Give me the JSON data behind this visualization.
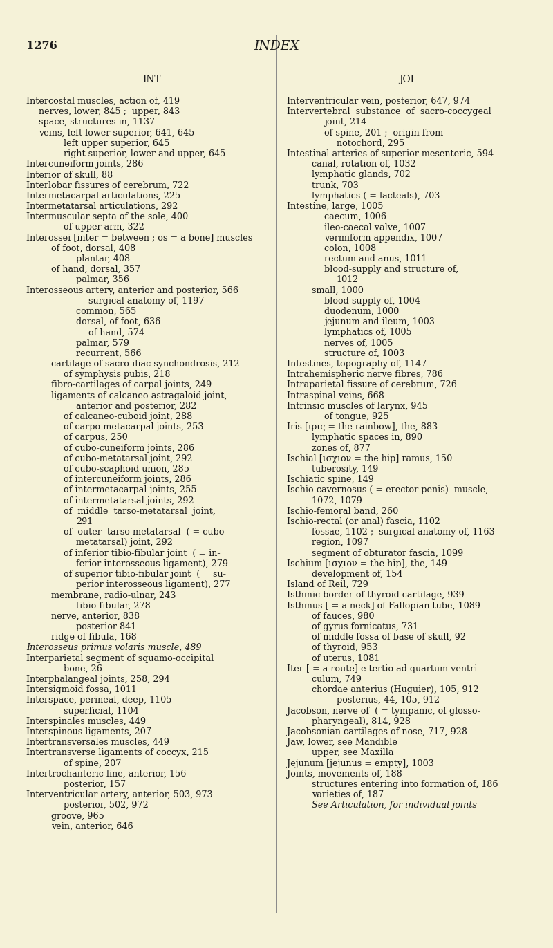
{
  "background_color": "#f5f2d8",
  "page_number": "1276",
  "page_title": "INDEX",
  "col1_header": "INT",
  "col2_header": "JOI",
  "left_col_lines": [
    [
      "Intercostal muscles, action of, 419",
      0,
      false
    ],
    [
      "nerves, lower, 845 ;  upper, 843",
      1,
      false
    ],
    [
      "space, structures in, 1137",
      1,
      false
    ],
    [
      "veins, left lower superior, 641, 645",
      1,
      false
    ],
    [
      "left upper superior, 645",
      3,
      false
    ],
    [
      "right superior, lower and upper, 645",
      3,
      false
    ],
    [
      "Intercuneiform joints, 286",
      0,
      false
    ],
    [
      "Interior of skull, 88",
      0,
      false
    ],
    [
      "Interlobar fissures of cerebrum, 722",
      0,
      false
    ],
    [
      "Intermetacarpal articulations, 225",
      0,
      false
    ],
    [
      "Intermetatarsal articulations, 292",
      0,
      false
    ],
    [
      "Intermuscular septa of the sole, 400",
      0,
      false
    ],
    [
      "of upper arm, 322",
      3,
      false
    ],
    [
      "Interossei [inter = between ; os = a bone] muscles",
      0,
      false
    ],
    [
      "of foot, dorsal, 408",
      2,
      false
    ],
    [
      "plantar, 408",
      4,
      false
    ],
    [
      "of hand, dorsal, 357",
      2,
      false
    ],
    [
      "palmar, 356",
      4,
      false
    ],
    [
      "Interosseous artery, anterior and posterior, 566",
      0,
      false
    ],
    [
      "surgical anatomy of, 1197",
      5,
      false
    ],
    [
      "common, 565",
      4,
      false
    ],
    [
      "dorsal, of foot, 636",
      4,
      false
    ],
    [
      "of hand, 574",
      5,
      false
    ],
    [
      "palmar, 579",
      4,
      false
    ],
    [
      "recurrent, 566",
      4,
      false
    ],
    [
      "cartilage of sacro-iliac synchondrosis, 212",
      2,
      false
    ],
    [
      "of symphysis pubis, 218",
      3,
      false
    ],
    [
      "fibro-cartilages of carpal joints, 249",
      2,
      false
    ],
    [
      "ligaments of calcaneo-astragaloid joint,",
      2,
      false
    ],
    [
      "anterior and posterior, 282",
      4,
      false
    ],
    [
      "of calcaneo-cuboid joint, 288",
      3,
      false
    ],
    [
      "of carpo-metacarpal joints, 253",
      3,
      false
    ],
    [
      "of carpus, 250",
      3,
      false
    ],
    [
      "of cubo-cuneiform joints, 286",
      3,
      false
    ],
    [
      "of cubo-metatarsal joint, 292",
      3,
      false
    ],
    [
      "of cubo-scaphoid union, 285",
      3,
      false
    ],
    [
      "of intercuneiform joints, 286",
      3,
      false
    ],
    [
      "of intermetacarpal joints, 255",
      3,
      false
    ],
    [
      "of intermetatarsal joints, 292",
      3,
      false
    ],
    [
      "of  middle  tarso-metatarsal  joint,",
      3,
      false
    ],
    [
      "291",
      4,
      false
    ],
    [
      "of  outer  tarso-metatarsal  ( = cubo-",
      3,
      false
    ],
    [
      "metatarsal) joint, 292",
      4,
      false
    ],
    [
      "of inferior tibio-fibular joint  ( = in-",
      3,
      false
    ],
    [
      "ferior interosseous ligament), 279",
      4,
      false
    ],
    [
      "of superior tibio-fibular joint  ( = su-",
      3,
      false
    ],
    [
      "perior interosseous ligament), 277",
      4,
      false
    ],
    [
      "membrane, radio-ulnar, 243",
      2,
      false
    ],
    [
      "tibio-fibular, 278",
      4,
      false
    ],
    [
      "nerve, anterior, 838",
      2,
      false
    ],
    [
      "posterior 841",
      4,
      false
    ],
    [
      "ridge of fibula, 168",
      2,
      false
    ],
    [
      "Interosseus primus volaris muscle, 489",
      0,
      true
    ],
    [
      "Interparietal segment of squamo-occipital",
      0,
      false
    ],
    [
      "bone, 26",
      3,
      false
    ],
    [
      "Interphalangeal joints, 258, 294",
      0,
      false
    ],
    [
      "Intersigmoid fossa, 1011",
      0,
      false
    ],
    [
      "Interspace, perineal, deep, 1105",
      0,
      false
    ],
    [
      "superficial, 1104",
      3,
      false
    ],
    [
      "Interspinales muscles, 449",
      0,
      false
    ],
    [
      "Interspinous ligaments, 207",
      0,
      false
    ],
    [
      "Intertransversales muscles, 449",
      0,
      false
    ],
    [
      "Intertransverse ligaments of coccyx, 215",
      0,
      false
    ],
    [
      "of spine, 207",
      3,
      false
    ],
    [
      "Intertrochanteric line, anterior, 156",
      0,
      false
    ],
    [
      "posterior, 157",
      3,
      false
    ],
    [
      "Interventricular artery, anterior, 503, 973",
      0,
      false
    ],
    [
      "posterior, 502, 972",
      3,
      false
    ],
    [
      "groove, 965",
      2,
      false
    ],
    [
      "vein, anterior, 646",
      2,
      false
    ]
  ],
  "right_col_lines": [
    [
      "Interventricular vein, posterior, 647, 974",
      0,
      false
    ],
    [
      "Intervertebral  substance  of  sacro-coccygeal",
      0,
      false
    ],
    [
      "joint, 214",
      3,
      false
    ],
    [
      "of spine, 201 ;  origin from",
      3,
      false
    ],
    [
      "notochord, 295",
      4,
      false
    ],
    [
      "Intestinal arteries of superior mesenteric, 594",
      0,
      false
    ],
    [
      "canal, rotation of, 1032",
      2,
      false
    ],
    [
      "lymphatic glands, 702",
      2,
      false
    ],
    [
      "trunk, 703",
      2,
      false
    ],
    [
      "lymphatics ( = lacteals), 703",
      2,
      false
    ],
    [
      "Intestine, large, 1005",
      0,
      false
    ],
    [
      "caecum, 1006",
      3,
      false
    ],
    [
      "ileo-caecal valve, 1007",
      3,
      false
    ],
    [
      "vermiform appendix, 1007",
      3,
      false
    ],
    [
      "colon, 1008",
      3,
      false
    ],
    [
      "rectum and anus, 1011",
      3,
      false
    ],
    [
      "blood-supply and structure of,",
      3,
      false
    ],
    [
      "1012",
      4,
      false
    ],
    [
      "small, 1000",
      2,
      false
    ],
    [
      "blood-supply of, 1004",
      3,
      false
    ],
    [
      "duodenum, 1000",
      3,
      false
    ],
    [
      "jejunum and ileum, 1003",
      3,
      false
    ],
    [
      "lymphatics of, 1005",
      3,
      false
    ],
    [
      "nerves of, 1005",
      3,
      false
    ],
    [
      "structure of, 1003",
      3,
      false
    ],
    [
      "Intestines, topography of, 1147",
      0,
      false
    ],
    [
      "Intrahemispheric nerve fibres, 786",
      0,
      false
    ],
    [
      "Intraparietal fissure of cerebrum, 726",
      0,
      false
    ],
    [
      "Intraspinal veins, 668",
      0,
      false
    ],
    [
      "Intrinsic muscles of larynx, 945",
      0,
      false
    ],
    [
      "of tongue, 925",
      3,
      false
    ],
    [
      "Iris [ιρις = the rainbow], the, 883",
      0,
      false
    ],
    [
      "lymphatic spaces in, 890",
      2,
      false
    ],
    [
      "zones of, 877",
      2,
      false
    ],
    [
      "Ischial [ισχιον = the hip] ramus, 150",
      0,
      false
    ],
    [
      "tuberosity, 149",
      2,
      false
    ],
    [
      "Ischiatic spine, 149",
      0,
      false
    ],
    [
      "Ischio-cavernosus ( = erector penis)  muscle,",
      0,
      false
    ],
    [
      "1072, 1079",
      2,
      false
    ],
    [
      "Ischio-femoral band, 260",
      0,
      false
    ],
    [
      "Ischio-rectal (or anal) fascia, 1102",
      0,
      false
    ],
    [
      "fossae, 1102 ;  surgical anatomy of, 1163",
      2,
      false
    ],
    [
      "region, 1097",
      2,
      false
    ],
    [
      "segment of obturator fascia, 1099",
      2,
      false
    ],
    [
      "Ischium [ισχιον = the hip], the, 149",
      0,
      false
    ],
    [
      "development of, 154",
      2,
      false
    ],
    [
      "Island of Reil, 729",
      0,
      false
    ],
    [
      "Isthmic border of thyroid cartilage, 939",
      0,
      false
    ],
    [
      "Isthmus [ = a neck] of Fallopian tube, 1089",
      0,
      false
    ],
    [
      "of fauces, 980",
      2,
      false
    ],
    [
      "of gyrus fornicatus, 731",
      2,
      false
    ],
    [
      "of middle fossa of base of skull, 92",
      2,
      false
    ],
    [
      "of thyroid, 953",
      2,
      false
    ],
    [
      "of uterus, 1081",
      2,
      false
    ],
    [
      "Iter [ = a route] e tertio ad quartum ventri-",
      0,
      false
    ],
    [
      "culum, 749",
      2,
      false
    ],
    [
      "chordae anterius (Huguier), 105, 912",
      2,
      false
    ],
    [
      "posterius, 44, 105, 912",
      4,
      false
    ],
    [
      "Jacobson, nerve of  ( = tympanic, of glosso-",
      0,
      false
    ],
    [
      "pharyngeal), 814, 928",
      2,
      false
    ],
    [
      "Jacobsonian cartilages of nose, 717, 928",
      0,
      false
    ],
    [
      "Jaw, lower, see Mandible",
      0,
      false
    ],
    [
      "upper, see Maxilla",
      2,
      false
    ],
    [
      "Jejunum [jejunus = empty], 1003",
      0,
      false
    ],
    [
      "Joints, movements of, 188",
      0,
      false
    ],
    [
      "structures entering into formation of, 186",
      2,
      false
    ],
    [
      "varieties of, 187",
      2,
      false
    ],
    [
      "See Articulation, for individual joints",
      2,
      true
    ]
  ]
}
